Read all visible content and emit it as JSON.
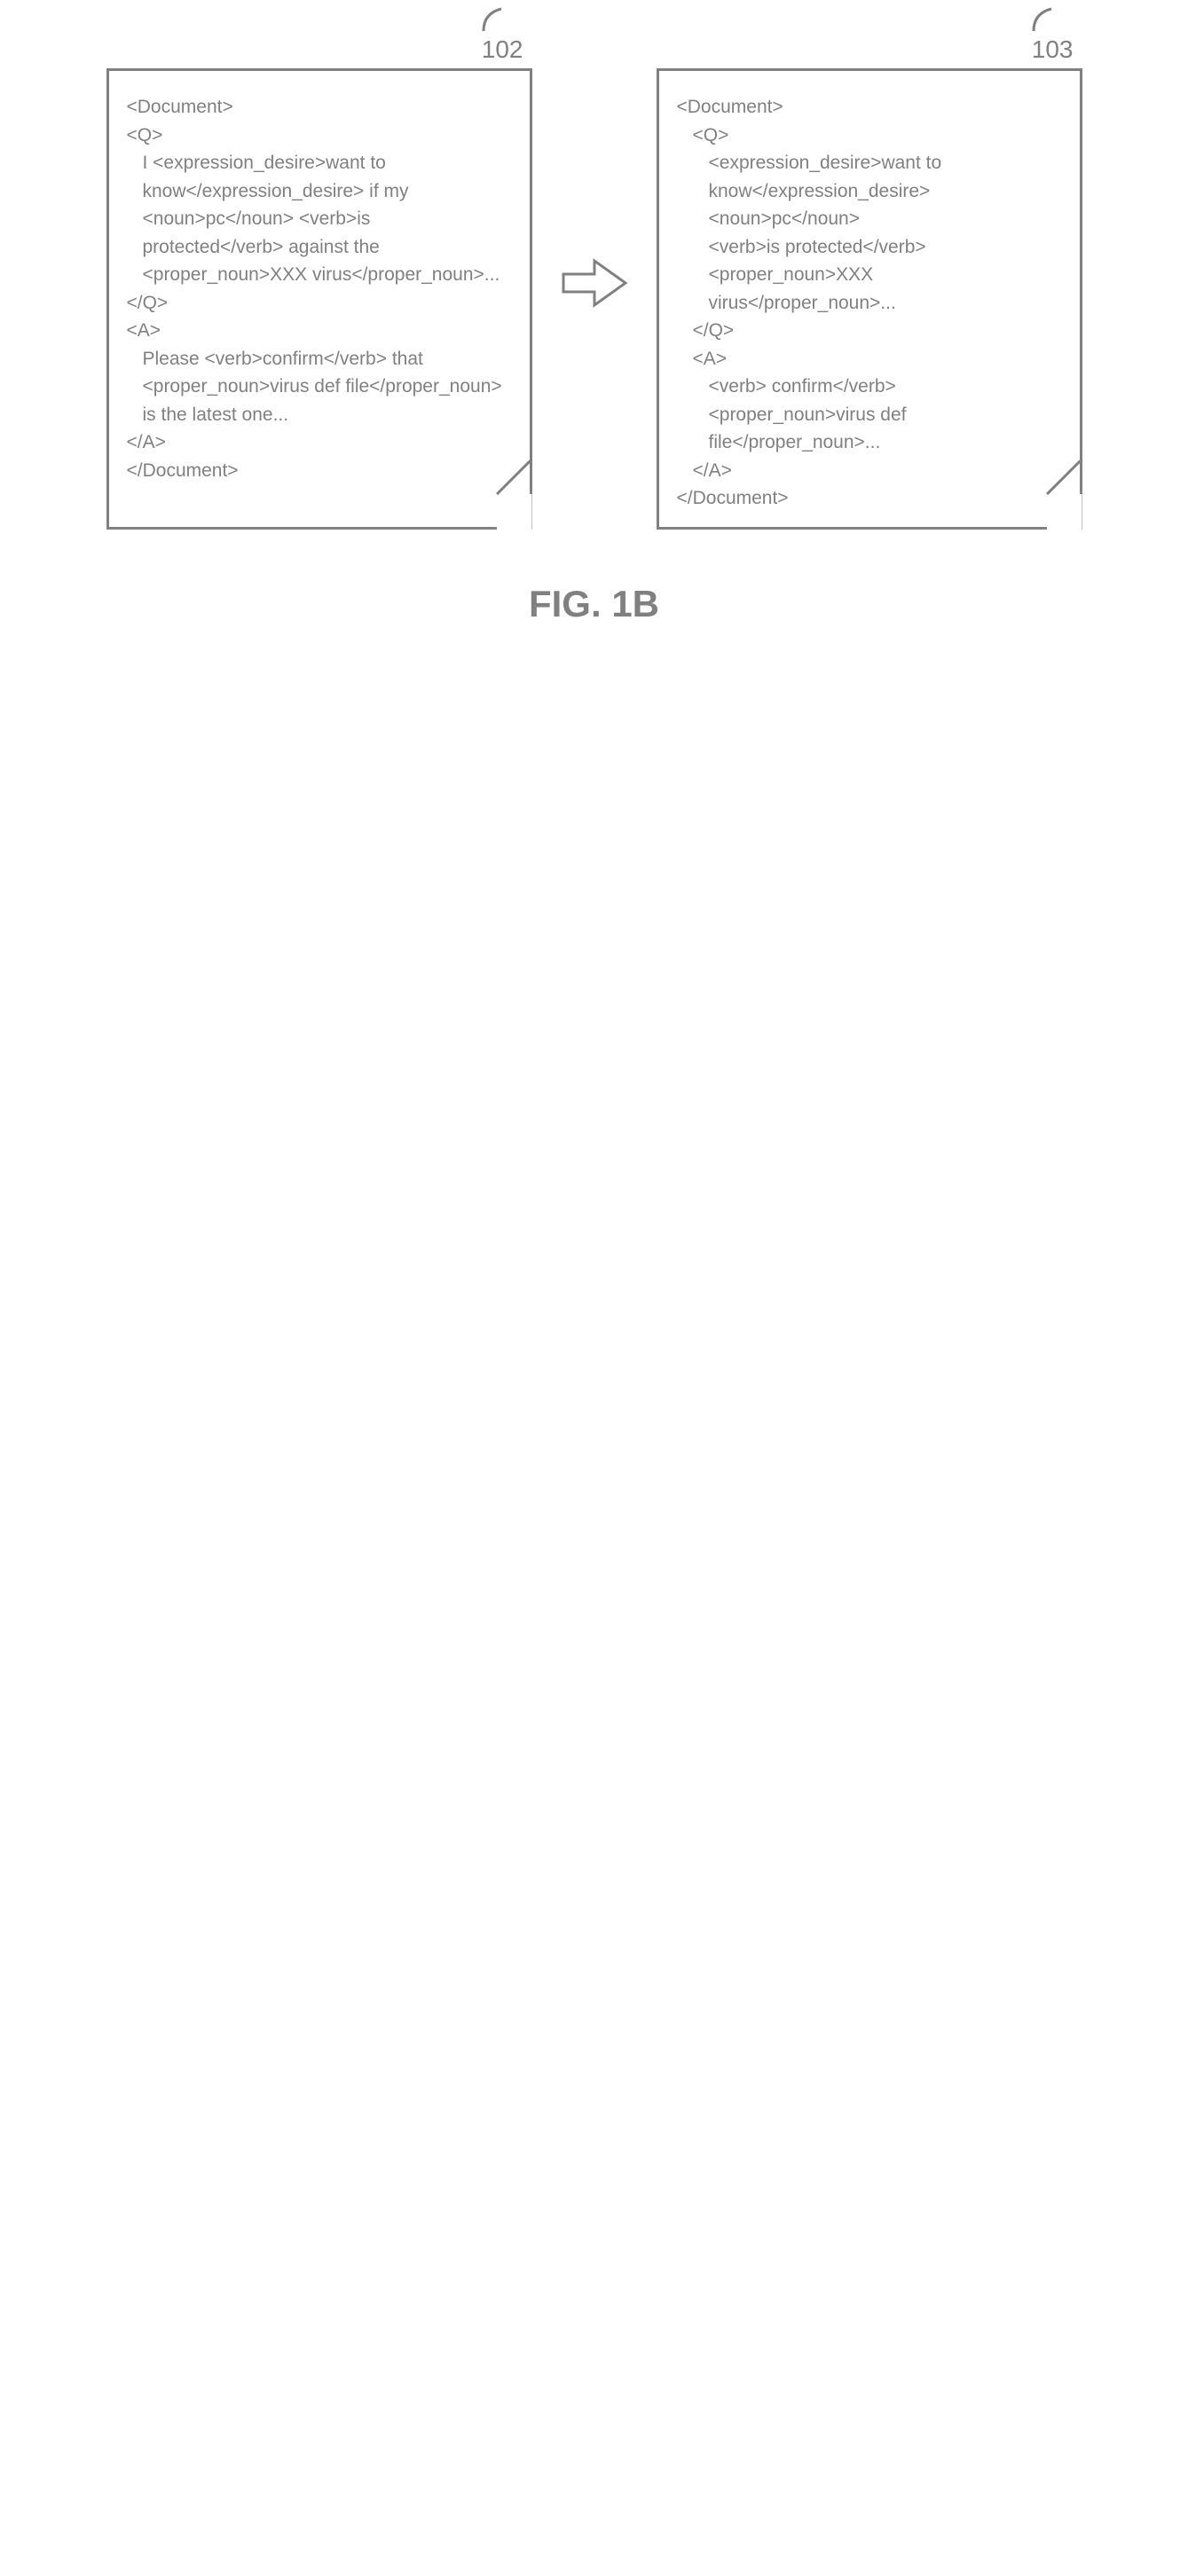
{
  "figure_label": "FIG. 1B",
  "colors": {
    "stroke": "#808080",
    "text": "#808080",
    "background": "#ffffff"
  },
  "stroke_width": 3,
  "doc_left": {
    "label": "102",
    "lines": [
      {
        "text": "<Document>",
        "indent": 0
      },
      {
        "text": "<Q>",
        "indent": 0
      },
      {
        "text": "I <expression_desire>want to know</expression_desire> if my <noun>pc</noun> <verb>is protected</verb> against the <proper_noun>XXX virus</proper_noun>...",
        "indent": 1
      },
      {
        "text": "</Q>",
        "indent": 0
      },
      {
        "text": "<A>",
        "indent": 0
      },
      {
        "text": "Please <verb>confirm</verb> that <proper_noun>virus def file</proper_noun> is the latest one...",
        "indent": 1
      },
      {
        "text": "</A>",
        "indent": 0
      },
      {
        "text": "</Document>",
        "indent": 0
      }
    ]
  },
  "doc_right": {
    "label": "103",
    "lines": [
      {
        "text": "<Document>",
        "indent": 0
      },
      {
        "text": "<Q>",
        "indent": 1
      },
      {
        "text": "<expression_desire>want to know</expression_desire>",
        "indent": 2
      },
      {
        "text": "<noun>pc</noun>",
        "indent": 2
      },
      {
        "text": "<verb>is protected</verb>",
        "indent": 2
      },
      {
        "text": "<proper_noun>XXX virus</proper_noun>...",
        "indent": 2
      },
      {
        "text": "</Q>",
        "indent": 1
      },
      {
        "text": "<A>",
        "indent": 1
      },
      {
        "text": "<verb> confirm</verb>",
        "indent": 2
      },
      {
        "text": "<proper_noun>virus def file</proper_noun>...",
        "indent": 2
      },
      {
        "text": "</A>",
        "indent": 1
      },
      {
        "text": "</Document>",
        "indent": 0
      }
    ]
  }
}
